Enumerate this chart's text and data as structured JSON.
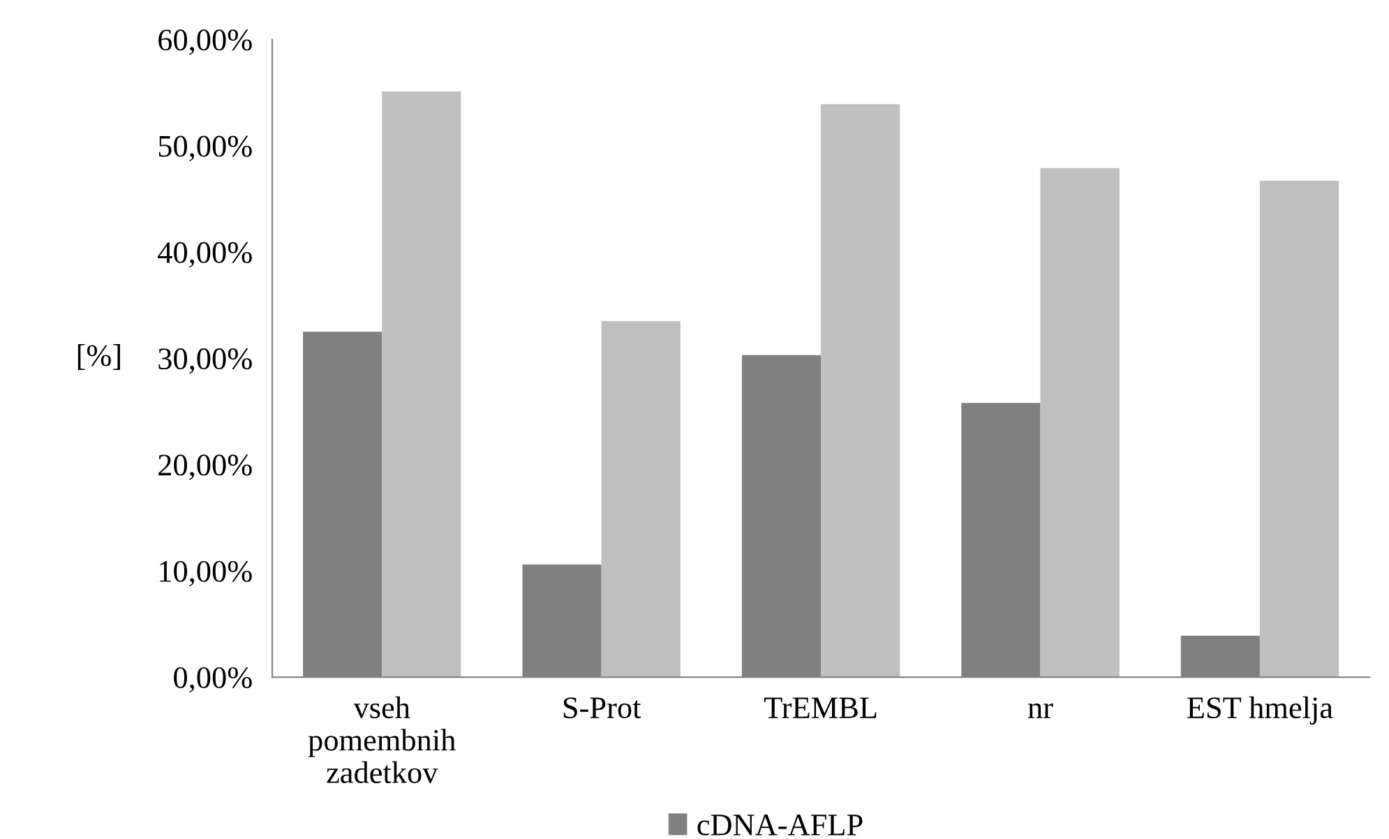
{
  "chart_data": {
    "type": "bar",
    "ylabel": "[%]",
    "categories": [
      "vseh\npomembnih\nzadetkov",
      "S-Prot",
      "TrEMBL",
      "nr",
      "EST hmelja"
    ],
    "series": [
      {
        "name": "cDNA-AFLP",
        "color": "#808080",
        "values": [
          32.5,
          10.6,
          30.3,
          25.8,
          3.9
        ]
      },
      {
        "color": "#bfbfbf",
        "values": [
          55.1,
          33.5,
          53.9,
          47.9,
          46.7
        ]
      }
    ],
    "ylim": [
      0,
      60
    ],
    "yticks": [
      {
        "value": 0,
        "label": "0,00%"
      },
      {
        "value": 10,
        "label": "10,00%"
      },
      {
        "value": 20,
        "label": "20,00%"
      },
      {
        "value": 30,
        "label": "30,00%"
      },
      {
        "value": 40,
        "label": "40,00%"
      },
      {
        "value": 50,
        "label": "50,00%"
      },
      {
        "value": 60,
        "label": "60,00%"
      }
    ],
    "grid": false,
    "legend": "bottom"
  }
}
